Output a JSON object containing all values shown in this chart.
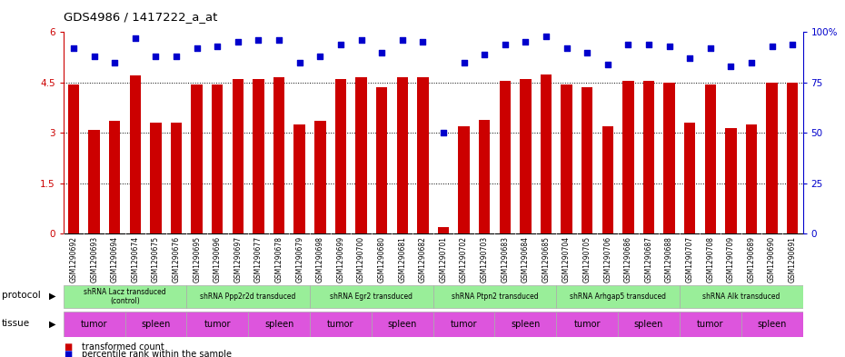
{
  "title": "GDS4986 / 1417222_a_at",
  "samples": [
    "GSM1290692",
    "GSM1290693",
    "GSM1290694",
    "GSM1290674",
    "GSM1290675",
    "GSM1290676",
    "GSM1290695",
    "GSM1290696",
    "GSM1290697",
    "GSM1290677",
    "GSM1290678",
    "GSM1290679",
    "GSM1290698",
    "GSM1290699",
    "GSM1290700",
    "GSM1290680",
    "GSM1290681",
    "GSM1290682",
    "GSM1290701",
    "GSM1290702",
    "GSM1290703",
    "GSM1290683",
    "GSM1290684",
    "GSM1290685",
    "GSM1290704",
    "GSM1290705",
    "GSM1290706",
    "GSM1290686",
    "GSM1290687",
    "GSM1290688",
    "GSM1290707",
    "GSM1290708",
    "GSM1290709",
    "GSM1290689",
    "GSM1290690",
    "GSM1290691"
  ],
  "bar_values": [
    4.45,
    3.1,
    3.35,
    4.7,
    3.3,
    3.3,
    4.45,
    4.45,
    4.6,
    4.6,
    4.65,
    3.25,
    3.35,
    4.6,
    4.65,
    4.35,
    4.65,
    4.65,
    0.2,
    3.2,
    3.4,
    4.55,
    4.6,
    4.75,
    4.45,
    4.35,
    3.2,
    4.55,
    4.55,
    4.5,
    3.3,
    4.45,
    3.15,
    3.25,
    4.5,
    4.5
  ],
  "percentile_values": [
    92,
    88,
    85,
    97,
    88,
    88,
    92,
    93,
    95,
    96,
    96,
    85,
    88,
    94,
    96,
    90,
    96,
    95,
    50,
    85,
    89,
    94,
    95,
    98,
    92,
    90,
    84,
    94,
    94,
    93,
    87,
    92,
    83,
    85,
    93,
    94
  ],
  "protocols": [
    {
      "label": "shRNA Lacz transduced\n(control)",
      "start": 0,
      "end": 6
    },
    {
      "label": "shRNA Ppp2r2d transduced",
      "start": 6,
      "end": 12
    },
    {
      "label": "shRNA Egr2 transduced",
      "start": 12,
      "end": 18
    },
    {
      "label": "shRNA Ptpn2 transduced",
      "start": 18,
      "end": 24
    },
    {
      "label": "shRNA Arhgap5 transduced",
      "start": 24,
      "end": 30
    },
    {
      "label": "shRNA Alk transduced",
      "start": 30,
      "end": 36
    }
  ],
  "tissues": [
    {
      "label": "tumor",
      "start": 0,
      "end": 3
    },
    {
      "label": "spleen",
      "start": 3,
      "end": 6
    },
    {
      "label": "tumor",
      "start": 6,
      "end": 9
    },
    {
      "label": "spleen",
      "start": 9,
      "end": 12
    },
    {
      "label": "tumor",
      "start": 12,
      "end": 15
    },
    {
      "label": "spleen",
      "start": 15,
      "end": 18
    },
    {
      "label": "tumor",
      "start": 18,
      "end": 21
    },
    {
      "label": "spleen",
      "start": 21,
      "end": 24
    },
    {
      "label": "tumor",
      "start": 24,
      "end": 27
    },
    {
      "label": "spleen",
      "start": 27,
      "end": 30
    },
    {
      "label": "tumor",
      "start": 30,
      "end": 33
    },
    {
      "label": "spleen",
      "start": 33,
      "end": 36
    }
  ],
  "ylim_left": [
    0,
    6
  ],
  "ylim_right": [
    0,
    100
  ],
  "yticks_left": [
    0,
    1.5,
    3.0,
    4.5,
    6.0
  ],
  "ytick_labels_left": [
    "0",
    "1.5",
    "3",
    "4.5",
    "6"
  ],
  "yticks_right": [
    0,
    25,
    50,
    75,
    100
  ],
  "ytick_labels_right": [
    "0",
    "25",
    "50",
    "75",
    "100%"
  ],
  "bar_color": "#cc0000",
  "dot_color": "#0000cc",
  "bg_color": "#ffffff",
  "plot_bg": "#ffffff",
  "protocol_color": "#99ee99",
  "tissue_color": "#dd55dd",
  "xticklabel_bg": "#d8d8d8"
}
